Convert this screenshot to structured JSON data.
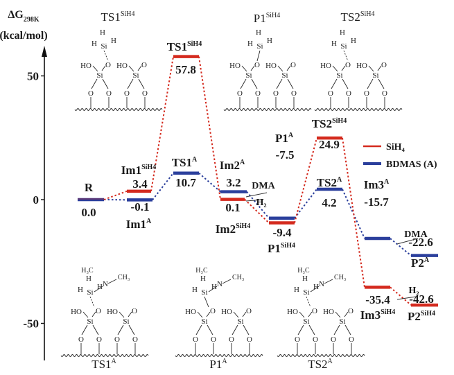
{
  "chart_data": {
    "type": "energy_profile",
    "ylabel_main": "ΔG",
    "ylabel_sub": "298K",
    "ylabel_unit": "(kcal/mol)",
    "yticks": [
      50,
      0,
      -50
    ],
    "ylim": [
      -66,
      75
    ],
    "colors": {
      "SiH4": "#d42a1e",
      "BDMAS": "#2b3f9c"
    },
    "legend": [
      {
        "key": "SiH4",
        "label": "SiH₄"
      },
      {
        "key": "BDMAS",
        "label": "BDMAS (A)"
      }
    ],
    "levels": [
      {
        "id": "R",
        "series": "both",
        "energy": 0.0,
        "name": "R",
        "value": "0.0"
      },
      {
        "id": "Im1SiH4",
        "series": "SiH4",
        "energy": 3.4,
        "name": "Im1",
        "sup": "SiH4",
        "value": "3.4"
      },
      {
        "id": "Im1A",
        "series": "BDMAS",
        "energy": -0.1,
        "name": "Im1",
        "sup": "A",
        "value": "-0.1"
      },
      {
        "id": "TS1SiH4",
        "series": "SiH4",
        "energy": 57.8,
        "name": "TS1",
        "sup": "SiH4",
        "value": "57.8"
      },
      {
        "id": "TS1A",
        "series": "BDMAS",
        "energy": 10.7,
        "name": "TS1",
        "sup": "A",
        "value": "10.7"
      },
      {
        "id": "Im2A",
        "series": "BDMAS",
        "energy": 3.2,
        "name": "Im2",
        "sup": "A",
        "value": "3.2"
      },
      {
        "id": "Im2SiH4",
        "series": "SiH4",
        "energy": 0.1,
        "name": "Im2",
        "sup": "SiH4",
        "value": "0.1"
      },
      {
        "id": "P1A",
        "series": "BDMAS",
        "energy": -7.5,
        "name": "P1",
        "sup": "A",
        "value": "-7.5"
      },
      {
        "id": "P1SiH4",
        "series": "SiH4",
        "energy": -9.4,
        "name": "P1",
        "sup": "SiH4",
        "value": "-9.4"
      },
      {
        "id": "TS2SiH4",
        "series": "SiH4",
        "energy": 24.9,
        "name": "TS2",
        "sup": "SiH4",
        "value": "24.9"
      },
      {
        "id": "TS2A",
        "series": "BDMAS",
        "energy": 4.2,
        "name": "TS2",
        "sup": "A",
        "value": "4.2"
      },
      {
        "id": "Im3A",
        "series": "BDMAS",
        "energy": -15.7,
        "name": "Im3",
        "sup": "A",
        "value": "-15.7"
      },
      {
        "id": "P2A",
        "series": "BDMAS",
        "energy": -22.6,
        "name": "P2",
        "sup": "A",
        "value": "-22.6"
      },
      {
        "id": "Im3SiH4",
        "series": "SiH4",
        "energy": -35.4,
        "name": "Im3",
        "sup": "SiH4",
        "value": "-35.4"
      },
      {
        "id": "P2SiH4",
        "series": "SiH4",
        "energy": -42.6,
        "name": "P2",
        "sup": "SiH4",
        "value": "-42.6"
      }
    ],
    "paths": {
      "SiH4": [
        "R",
        "Im1SiH4",
        "TS1SiH4",
        "Im2SiH4",
        "P1SiH4",
        "TS2SiH4",
        "Im3SiH4",
        "P2SiH4"
      ],
      "BDMAS": [
        "R",
        "Im1A",
        "TS1A",
        "Im2A",
        "P1A",
        "TS2A",
        "Im3A",
        "P2A"
      ]
    },
    "byproducts": [
      {
        "label": "DMA",
        "near": "Im2A"
      },
      {
        "label": "H₂",
        "near": "Im2SiH4"
      },
      {
        "label": "DMA",
        "near": "P2A"
      },
      {
        "label": "H₂",
        "near": "P2SiH4"
      }
    ],
    "structures": [
      {
        "name": "TS1",
        "sup": "SiH4"
      },
      {
        "name": "P1",
        "sup": "SiH4"
      },
      {
        "name": "TS2",
        "sup": "SiH4"
      },
      {
        "name": "TS1",
        "sup": "A"
      },
      {
        "name": "P1",
        "sup": "A"
      },
      {
        "name": "TS2",
        "sup": "A"
      }
    ],
    "atoms": {
      "si": "Si",
      "o": "O",
      "h": "H",
      "ho": "HO",
      "n": "N",
      "ch3": "CH₃",
      "h3c": "H₃C"
    }
  }
}
